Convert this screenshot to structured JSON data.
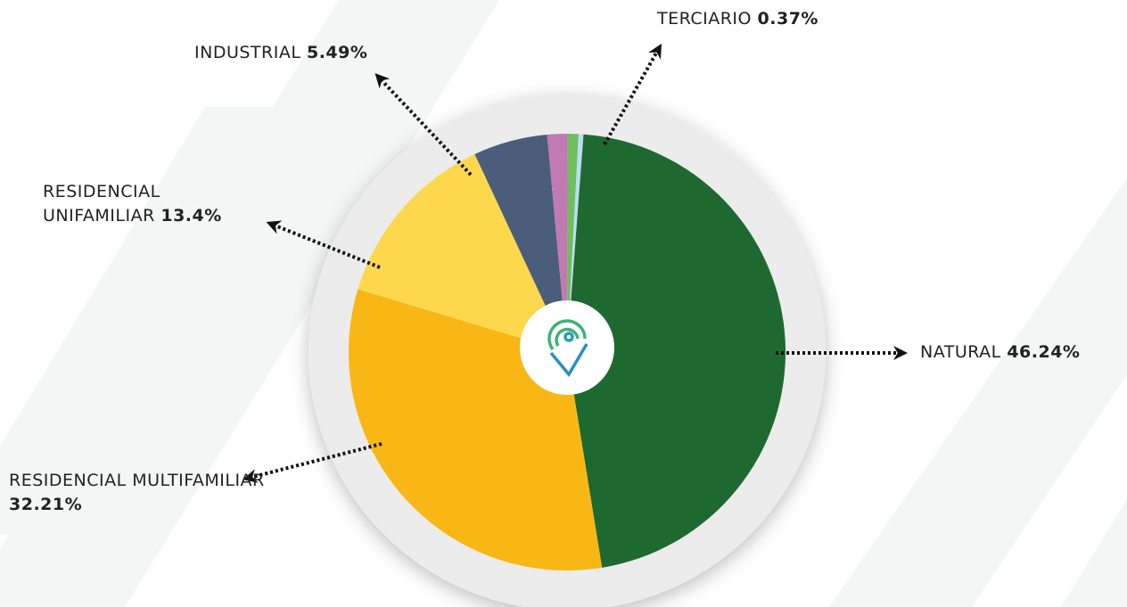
{
  "chart_data": {
    "type": "pie",
    "categories": [
      "TERCIARIO",
      "NATURAL",
      "RESIDENCIAL MULTIFAMILIAR",
      "RESIDENCIAL UNIFAMILIAR",
      "INDUSTRIAL",
      null,
      null
    ],
    "values": [
      0.37,
      46.24,
      32.21,
      13.4,
      5.49,
      1.5,
      0.79
    ],
    "value_labels": [
      "0.37%",
      "46.24%",
      "32.21%",
      "13.4%",
      "5.49%",
      null,
      null
    ],
    "colors": [
      "#bcdcf3",
      "#1e6930",
      "#f9b716",
      "#fed84c",
      "#4a5d7a",
      "#c27ab2",
      "#6fbe5e"
    ]
  }
}
